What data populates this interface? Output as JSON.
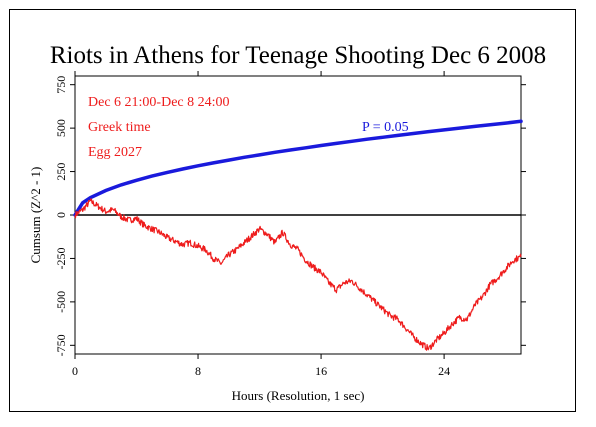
{
  "chart_data": {
    "type": "line",
    "title": "Riots in Athens for Teenage Shooting Dec 6 2008",
    "xlabel": "Hours (Resolution, 1 sec)",
    "ylabel": "Cumsum (Z^2 - 1)",
    "xlim": [
      0,
      29
    ],
    "ylim": [
      -800,
      800
    ],
    "xticks": [
      "0",
      "8",
      "16",
      "24"
    ],
    "xtick_values": [
      0,
      8,
      16,
      24
    ],
    "yticks": [
      "-750",
      "-500",
      "-250",
      "0",
      "250",
      "500",
      "750"
    ],
    "ytick_values": [
      -750,
      -500,
      -250,
      0,
      250,
      500,
      750
    ],
    "annotations": [
      "Dec 6 21:00-Dec 8 24:00",
      "Greek time",
      "Egg 2027"
    ],
    "probability_label": "P = 0.05",
    "colors": {
      "data": "#ee1c1c",
      "envelope": "#1a1adc",
      "zero_line": "#000000"
    },
    "series": [
      {
        "role": "cumsum",
        "x": [
          0,
          0.5,
          1.0,
          1.5,
          2.0,
          2.5,
          3.0,
          3.5,
          4.0,
          4.5,
          5.0,
          5.5,
          6.0,
          6.5,
          7.0,
          7.5,
          8.0,
          8.5,
          9.0,
          9.5,
          10.0,
          10.5,
          11.0,
          11.5,
          12.0,
          12.5,
          13.0,
          13.5,
          14.0,
          14.5,
          15.0,
          15.5,
          16.0,
          16.5,
          17.0,
          17.5,
          18.0,
          18.5,
          19.0,
          19.5,
          20.0,
          20.5,
          21.0,
          21.5,
          22.0,
          22.5,
          23.0,
          23.5,
          24.0,
          24.5,
          25.0,
          25.5,
          26.0,
          26.5,
          27.0,
          27.5,
          28.0,
          28.5,
          29.0
        ],
        "y": [
          0,
          30,
          80,
          50,
          20,
          30,
          -10,
          -30,
          -20,
          -60,
          -80,
          -100,
          -130,
          -150,
          -170,
          -160,
          -180,
          -200,
          -250,
          -280,
          -230,
          -200,
          -160,
          -120,
          -80,
          -110,
          -160,
          -100,
          -170,
          -200,
          -260,
          -300,
          -330,
          -390,
          -430,
          -390,
          -380,
          -420,
          -460,
          -500,
          -540,
          -580,
          -600,
          -650,
          -700,
          -740,
          -770,
          -720,
          -680,
          -630,
          -590,
          -600,
          -520,
          -470,
          -400,
          -360,
          -310,
          -260,
          -240
        ]
      },
      {
        "role": "envelope",
        "x": [
          0,
          0.25,
          0.5,
          1,
          2,
          3,
          4,
          5,
          6,
          7,
          8,
          9,
          10,
          11,
          12,
          13,
          14,
          15,
          16,
          17,
          18,
          19,
          20,
          21,
          22,
          23,
          24,
          25,
          26,
          27,
          28,
          29
        ],
        "y": [
          0,
          35,
          70,
          100,
          141,
          173,
          200,
          224,
          245,
          265,
          283,
          300,
          316,
          332,
          346,
          361,
          374,
          387,
          400,
          412,
          424,
          436,
          447,
          458,
          469,
          480,
          490,
          500,
          510,
          520,
          529,
          539
        ]
      }
    ]
  }
}
